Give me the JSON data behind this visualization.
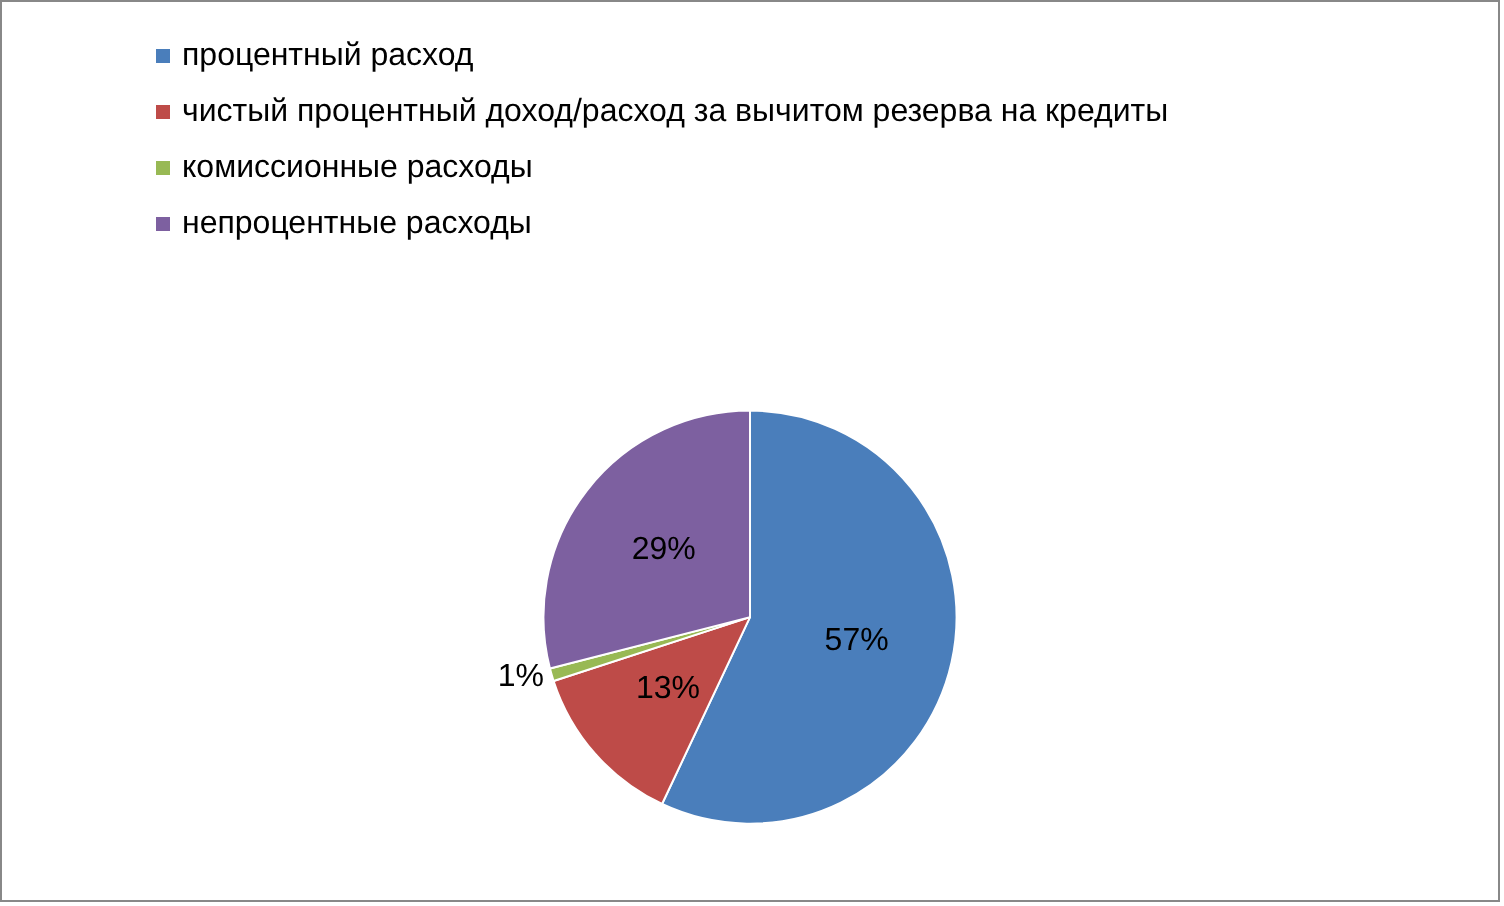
{
  "chart_data": {
    "type": "pie",
    "categories": [
      "процентный расход",
      "чистый процентный доход/расход за вычитом резерва на кредиты",
      "комиссионные расходы",
      "непроцентные расходы"
    ],
    "values": [
      57,
      13,
      1,
      29
    ],
    "colors": [
      "#4a7ebb",
      "#be4b48",
      "#98b954",
      "#7d60a0"
    ],
    "legend": "top left",
    "value_labels": [
      "57%",
      "13%",
      "1%",
      "29%"
    ]
  }
}
